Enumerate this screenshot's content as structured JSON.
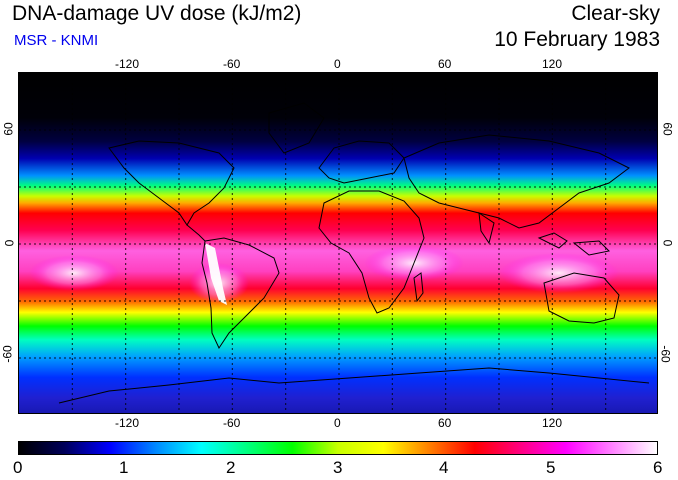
{
  "header": {
    "title": "DNA-damage UV dose (kJ/m2)",
    "credit": "MSR - KNMI",
    "mode": "Clear-sky",
    "date": "10 February 1983"
  },
  "map": {
    "projection": "equirectangular",
    "lon_range": [
      -180,
      180
    ],
    "lat_range": [
      -90,
      90
    ],
    "lon_ticks": [
      "-120",
      "-60",
      "0",
      "60",
      "120"
    ],
    "lat_ticks": [
      "60",
      "0",
      "-60"
    ],
    "grid": "dashed, every 30 degrees",
    "coastlines": true
  },
  "colorbar": {
    "min": 0,
    "max": 6,
    "labels": [
      "0",
      "1",
      "2",
      "3",
      "4",
      "5",
      "6"
    ],
    "colors": [
      "#000000",
      "#00005a",
      "#0000ff",
      "#0088ff",
      "#00ffff",
      "#00ff80",
      "#00ff00",
      "#c8ff00",
      "#ffff00",
      "#ff8000",
      "#ff0000",
      "#ff0080",
      "#ff00ff",
      "#ff80ff",
      "#ffffff"
    ]
  }
}
